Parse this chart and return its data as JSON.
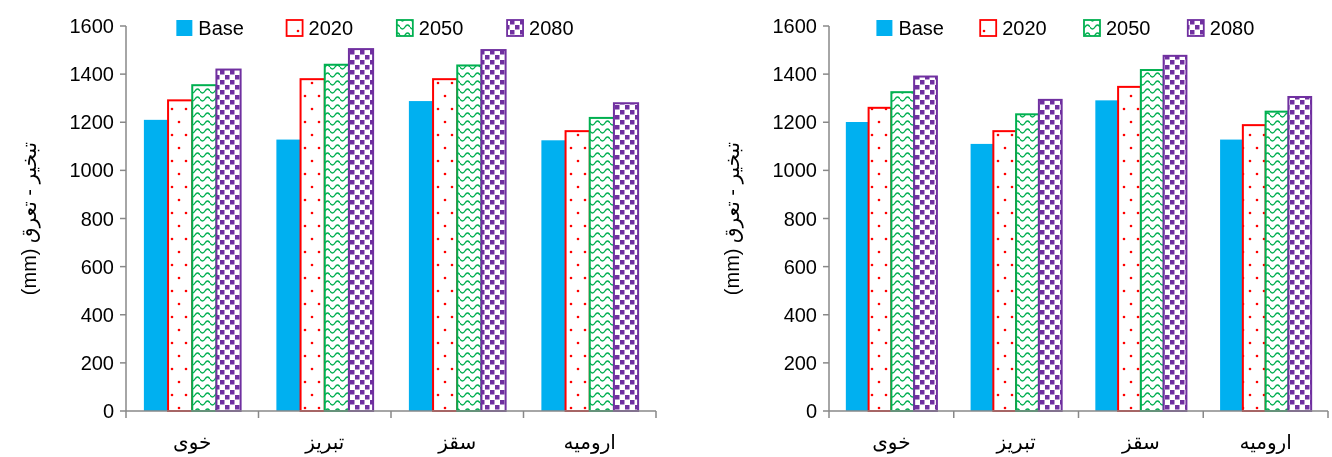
{
  "chart_data": [
    {
      "type": "bar",
      "ylabel": "تبخیر - تعرق (mm)",
      "categories": [
        "خوی",
        "تبریز",
        "سقز",
        "ارومیه"
      ],
      "ylim": [
        0,
        1600
      ],
      "yticks": [
        0,
        200,
        400,
        600,
        800,
        1000,
        1200,
        1400,
        1600
      ],
      "legend": "top",
      "series": [
        {
          "name": "Base",
          "color": "#00b0f0",
          "values": [
            1210,
            1128,
            1288,
            1125
          ]
        },
        {
          "name": "2020",
          "color": "#ff0000",
          "values": [
            1291,
            1379,
            1379,
            1163
          ]
        },
        {
          "name": "2050",
          "color": "#00b050",
          "values": [
            1354,
            1439,
            1436,
            1218
          ]
        },
        {
          "name": "2080",
          "color": "#7030a0",
          "values": [
            1419,
            1504,
            1500,
            1279
          ]
        }
      ]
    },
    {
      "type": "bar",
      "ylabel": "تبخیر - تعرق (mm)",
      "categories": [
        "خوی",
        "تبریز",
        "سقز",
        "ارومیه"
      ],
      "ylim": [
        0,
        1600
      ],
      "yticks": [
        0,
        200,
        400,
        600,
        800,
        1000,
        1200,
        1400,
        1600
      ],
      "legend": "top",
      "series": [
        {
          "name": "Base",
          "color": "#00b0f0",
          "values": [
            1201,
            1110,
            1291,
            1128
          ]
        },
        {
          "name": "2020",
          "color": "#ff0000",
          "values": [
            1260,
            1163,
            1347,
            1188
          ]
        },
        {
          "name": "2050",
          "color": "#00b050",
          "values": [
            1325,
            1233,
            1417,
            1244
          ]
        },
        {
          "name": "2080",
          "color": "#7030a0",
          "values": [
            1390,
            1293,
            1476,
            1305
          ]
        }
      ]
    }
  ]
}
